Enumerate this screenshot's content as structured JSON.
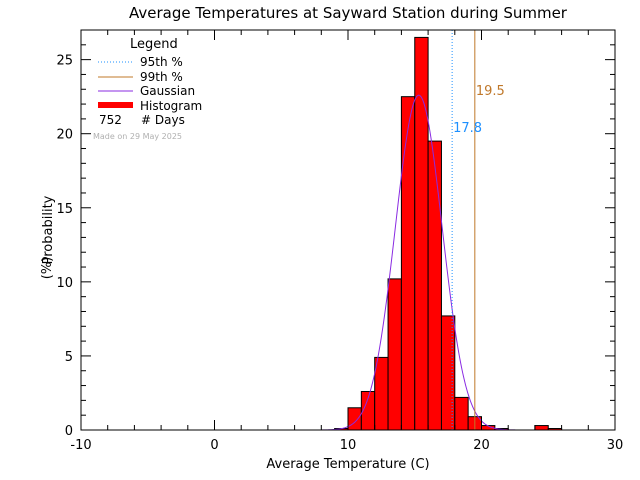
{
  "chart_data": {
    "type": "bar",
    "title": "Average Temperatures at Sayward Station during Summer",
    "xlabel": "Average Temperature (C)",
    "ylabel_line1": "Probability",
    "ylabel_line2": "(%)",
    "xlim": [
      -10,
      30
    ],
    "ylim": [
      0,
      27
    ],
    "xticks": [
      -10,
      0,
      10,
      20,
      30
    ],
    "yticks": [
      0,
      5,
      10,
      15,
      20,
      25
    ],
    "bin_width": 1,
    "bins": [
      {
        "x0": 9,
        "value": 0.1
      },
      {
        "x0": 10,
        "value": 1.5
      },
      {
        "x0": 11,
        "value": 2.6
      },
      {
        "x0": 12,
        "value": 4.9
      },
      {
        "x0": 13,
        "value": 10.2
      },
      {
        "x0": 14,
        "value": 22.5
      },
      {
        "x0": 15,
        "value": 26.5
      },
      {
        "x0": 16,
        "value": 19.5
      },
      {
        "x0": 17,
        "value": 7.7
      },
      {
        "x0": 18,
        "value": 2.2
      },
      {
        "x0": 19,
        "value": 0.9
      },
      {
        "x0": 20,
        "value": 0.3
      },
      {
        "x0": 21,
        "value": 0.1
      },
      {
        "x0": 24,
        "value": 0.3
      },
      {
        "x0": 25,
        "value": 0.1
      }
    ],
    "gaussian": {
      "mean": 15.3,
      "sigma": 1.75,
      "peak": 22.6
    },
    "p95": {
      "value": 17.8,
      "label": "17.8",
      "color": "#1e90ff"
    },
    "p99": {
      "value": 19.5,
      "label": "19.5",
      "color": "#c0782a"
    },
    "legend": {
      "title": "Legend",
      "items": [
        {
          "label": "95th %",
          "style": "dotted",
          "color": "#1e90ff"
        },
        {
          "label": "99th %",
          "style": "solid",
          "color": "#c0782a"
        },
        {
          "label": "Gaussian",
          "style": "solid",
          "color": "#8a2be2"
        },
        {
          "label": "Histogram",
          "style": "thick",
          "color": "#ff0000"
        }
      ],
      "days_count": "752",
      "days_label": "# Days",
      "made_on": "Made on 29 May 2025",
      "placement": "top-left"
    },
    "colors": {
      "bar_fill": "#ff0000",
      "bar_edge": "#000000",
      "gaussian": "#8a2be2"
    }
  }
}
